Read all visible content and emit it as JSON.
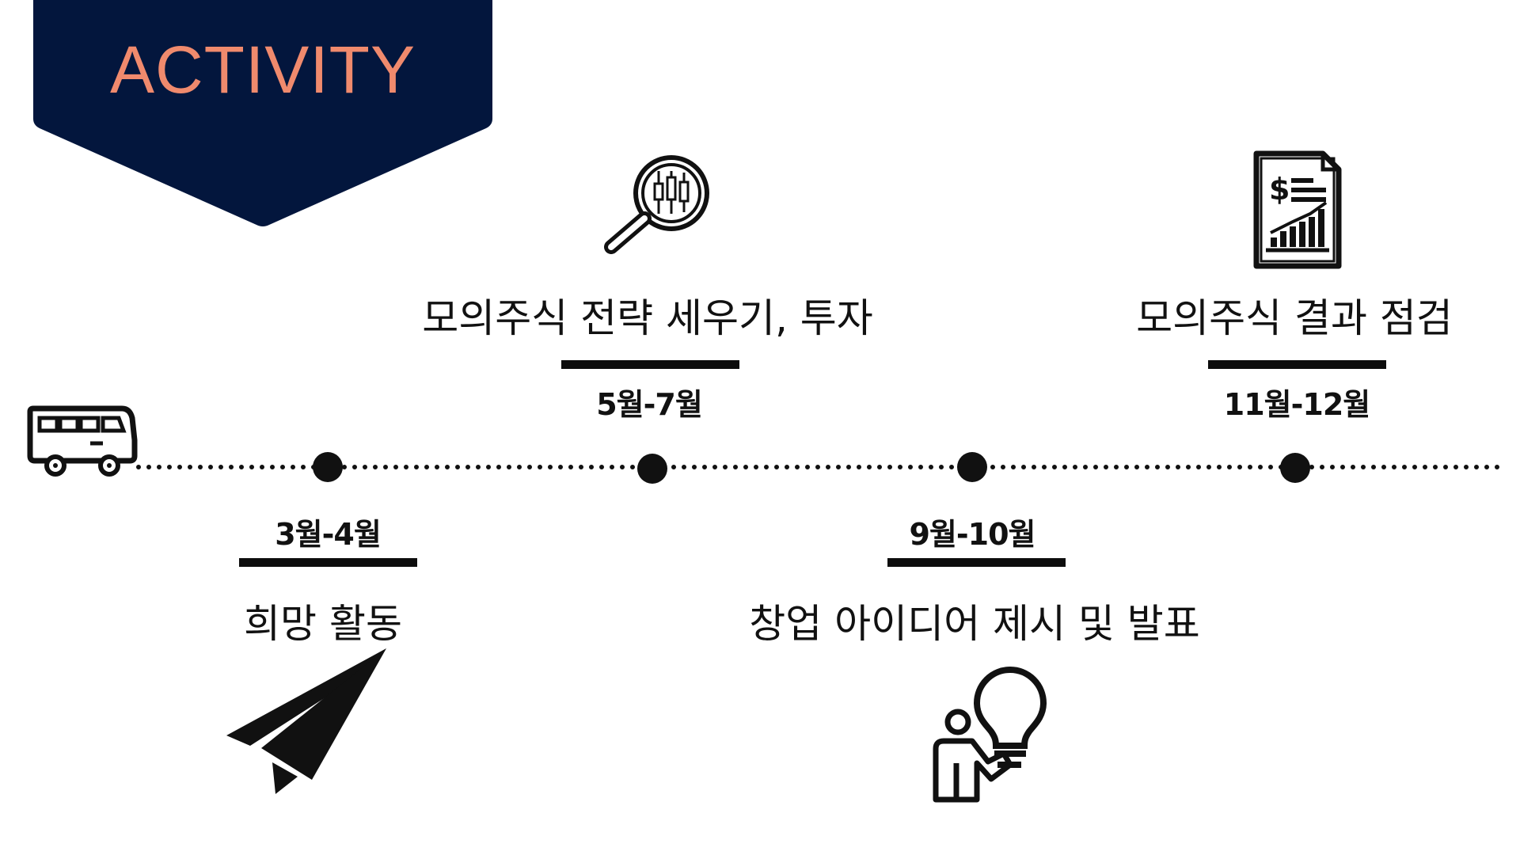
{
  "header": {
    "title": "ACTIVITY",
    "bg_color": "#03163d",
    "title_color": "#f08a6d"
  },
  "timeline": {
    "start_icon": "bus-icon",
    "items": [
      {
        "date": "3월-4월",
        "title": "희망 활동",
        "icon": "paper-plane-icon",
        "side": "below"
      },
      {
        "date": "5월-7월",
        "title": "모의주식 전략 세우기, 투자",
        "icon": "magnifier-candlestick-icon",
        "side": "above"
      },
      {
        "date": "9월-10월",
        "title": "창업 아이디어 제시 및 발표",
        "icon": "person-lightbulb-icon",
        "side": "below"
      },
      {
        "date": "11월-12월",
        "title": "모의주식 결과 점검",
        "icon": "financial-report-icon",
        "side": "above"
      }
    ]
  }
}
